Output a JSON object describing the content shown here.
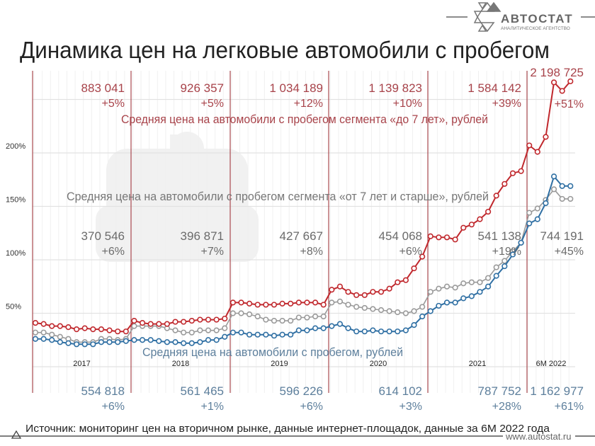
{
  "title": "Динамика цен на легковые автомобили с пробегом",
  "logo": {
    "name": "АВТОСТАТ",
    "subtitle": "АНАЛИТИЧЕСКОЕ АГЕНТСТВО"
  },
  "source": "Источник: мониторинг цен на вторичном рынке, данные интернет-площадок, данные за 6М 2022 года",
  "website": "www.autostat.ru",
  "colors": {
    "red": "#c0282d",
    "gray": "#9a9a9a",
    "blue": "#2f6fa3",
    "red_text": "#a8434a",
    "gray_text": "#6b6b6b",
    "blue_text": "#5d7f9c"
  },
  "chart_data": {
    "type": "line",
    "y_ticks": [
      "50%",
      "100%",
      "150%",
      "200%"
    ],
    "ylim": [
      0,
      250
    ],
    "grid": true,
    "watermark": "car-ruble-icon",
    "periods": [
      "2017",
      "2018",
      "2019",
      "2020",
      "2021",
      "6M 2022"
    ],
    "x": "monthly, Jan 2017 – Jun 2022",
    "series": [
      {
        "name": "Средняя цена на автомобили с пробегом сегмента «до 7 лет», рублей",
        "color": "#c0282d",
        "values": [
          41,
          40,
          38,
          38,
          37,
          35,
          36,
          35,
          35,
          34,
          33,
          33,
          43,
          41,
          40,
          40,
          40,
          42,
          42,
          43,
          44,
          44,
          44,
          45,
          60,
          60,
          59,
          58,
          58,
          58,
          59,
          59,
          60,
          60,
          60,
          58,
          72,
          75,
          70,
          67,
          67,
          70,
          70,
          73,
          79,
          81,
          92,
          103,
          122,
          121,
          121,
          119,
          130,
          133,
          138,
          145,
          160,
          171,
          181,
          183,
          207,
          201,
          215,
          266,
          258,
          267
        ],
        "annotations": [
          {
            "value": "883 041",
            "change": "+5%"
          },
          {
            "value": "926 357",
            "change": "+5%"
          },
          {
            "value": "1 034 189",
            "change": "+12%"
          },
          {
            "value": "1 139 823",
            "change": "+10%"
          },
          {
            "value": "1 584 142",
            "change": "+39%"
          },
          {
            "value": "2 198 725",
            "change": "+51%"
          }
        ]
      },
      {
        "name": "Средняя цена на автомобили с пробегом сегмента «от 7 лет и старше», рублей",
        "color": "#9a9a9a",
        "values": [
          32,
          32,
          30,
          28,
          26,
          23,
          23,
          23,
          26,
          26,
          25,
          26,
          38,
          38,
          38,
          38,
          36,
          34,
          32,
          32,
          34,
          34,
          34,
          36,
          50,
          50,
          49,
          47,
          44,
          43,
          43,
          43,
          46,
          46,
          47,
          47,
          60,
          61,
          58,
          56,
          55,
          54,
          53,
          52,
          51,
          50,
          52,
          56,
          70,
          73,
          75,
          74,
          78,
          79,
          79,
          83,
          93,
          99,
          108,
          116,
          144,
          148,
          156,
          166,
          157,
          157
        ],
        "annotations": [
          {
            "value": "370 546",
            "change": "+6%"
          },
          {
            "value": "396 871",
            "change": "+7%"
          },
          {
            "value": "427 667",
            "change": "+8%"
          },
          {
            "value": "454 068",
            "change": "+6%"
          },
          {
            "value": "541 138",
            "change": "+19%"
          },
          {
            "value": "744 191",
            "change": "+45%"
          }
        ]
      },
      {
        "name": "Средняя цена на автомобили с пробегом, рублей",
        "color": "#2f6fa3",
        "values": [
          26,
          26,
          25,
          23,
          22,
          21,
          21,
          21,
          23,
          23,
          23,
          24,
          25,
          25,
          25,
          24,
          23,
          23,
          22,
          22,
          23,
          25,
          25,
          28,
          32,
          32,
          30,
          30,
          30,
          29,
          30,
          30,
          34,
          34,
          36,
          36,
          38,
          40,
          36,
          33,
          33,
          34,
          33,
          33,
          33,
          34,
          39,
          47,
          52,
          57,
          60,
          60,
          64,
          66,
          70,
          75,
          85,
          94,
          105,
          116,
          134,
          138,
          153,
          178,
          169,
          169
        ],
        "annotations": [
          {
            "value": "554 818",
            "change": "+6%"
          },
          {
            "value": "561 465",
            "change": "+1%"
          },
          {
            "value": "596 226",
            "change": "+6%"
          },
          {
            "value": "614 102",
            "change": "+3%"
          },
          {
            "value": "787 752",
            "change": "+28%"
          },
          {
            "value": "1 162 977",
            "change": "+61%"
          }
        ]
      }
    ]
  }
}
